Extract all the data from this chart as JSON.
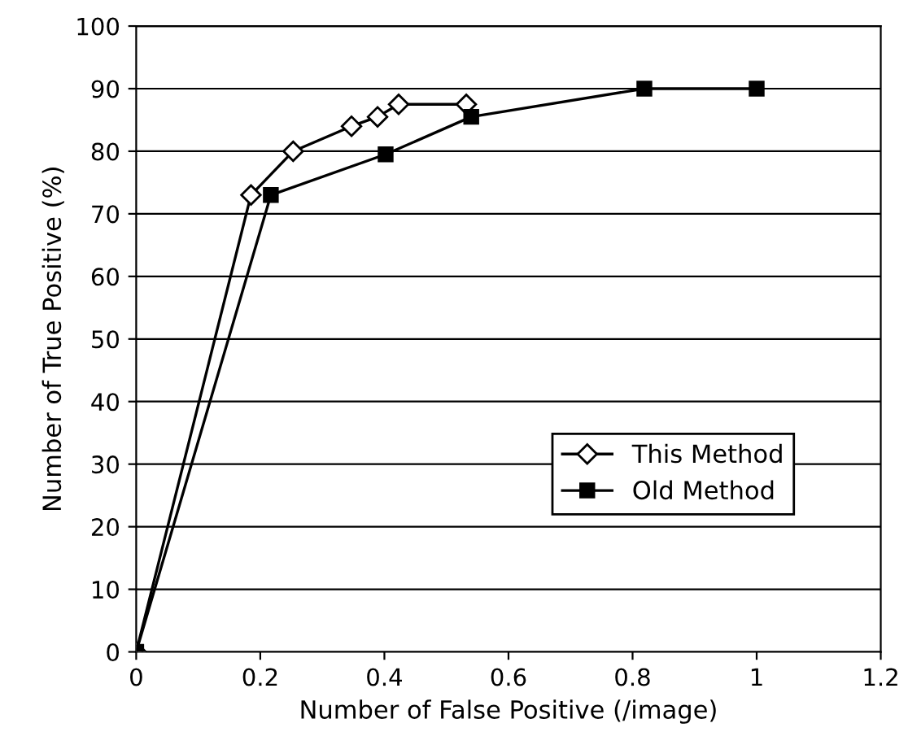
{
  "chart_data": {
    "type": "line",
    "xlabel": "Number of False Positive (/image)",
    "ylabel": "Number of True Positive (%)",
    "xlim": [
      0,
      1.2
    ],
    "xticks": [
      0,
      0.2,
      0.4,
      0.6,
      0.8,
      1,
      1.2
    ],
    "ylim": [
      0,
      100
    ],
    "yticks": [
      0,
      10,
      20,
      30,
      40,
      50,
      60,
      70,
      80,
      90,
      100
    ],
    "grid": "y",
    "legend": "lower right",
    "line_style": "solid",
    "series": [
      {
        "name": "This Method",
        "color": "#000000",
        "marker": "diamond",
        "x": [
          0,
          0.185,
          0.253,
          0.347,
          0.389,
          0.423,
          0.532
        ],
        "values": [
          0,
          73,
          80,
          84,
          85.5,
          87.5,
          87.5
        ]
      },
      {
        "name": "Old Method",
        "color": "#000000",
        "marker": "square",
        "x": [
          0,
          0.217,
          0.402,
          0.54,
          0.819,
          1.0
        ],
        "values": [
          0,
          73,
          79.5,
          85.5,
          90,
          90
        ]
      }
    ]
  }
}
